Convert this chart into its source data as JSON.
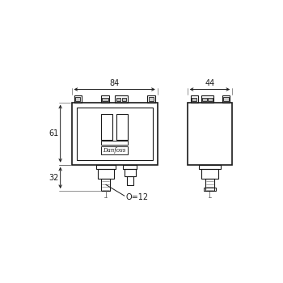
{
  "bg_color": "#ffffff",
  "line_color": "#1a1a1a",
  "gray_color": "#666666",
  "dim_84_text": "84",
  "dim_44_text": "44",
  "dim_61_text": "61",
  "dim_32_text": "32",
  "dim_12_text": "O=12",
  "danfoss_text": "Danfoss"
}
